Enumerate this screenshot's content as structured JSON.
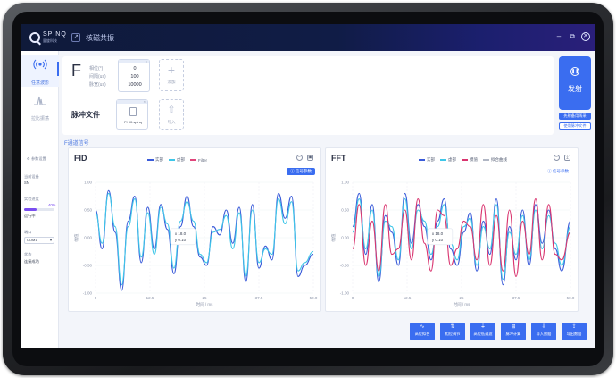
{
  "app": {
    "logo_text": "SPINQ",
    "logo_sub": "量旋科技",
    "title": "核磁共振",
    "win_buttons": [
      "–",
      "⧉",
      "✕"
    ]
  },
  "sidebar": {
    "items": [
      {
        "label": "任意波形",
        "icon": "antenna-icon",
        "active": true
      },
      {
        "label": "拉比振荡",
        "icon": "waveform-icon",
        "active": false
      }
    ],
    "settings_label": "参数设置",
    "current_device_label": "当前设备",
    "current_device": "SN",
    "experiment_progress_label": "实验进度",
    "progress_value": 0.4,
    "progress_text": "40%",
    "progress_status": "运行中",
    "port_label": "端口",
    "port_value": "COM1",
    "status_label": "状态",
    "status_value": "连接成功"
  },
  "params": {
    "symbol": "F",
    "labels": [
      "相位(°)",
      "间隔(us)",
      "脉宽(us)"
    ],
    "values": [
      "0",
      "100",
      "10000"
    ],
    "add_label": "添加",
    "pulse_file_label": "脉冲文件",
    "file_name": "FI 90.spinq",
    "import_label": "导入"
  },
  "fire": {
    "label": "发射",
    "btn1": "先射备用再采",
    "btn2": "使用脉冲文件"
  },
  "channel_label": "F通道信号",
  "fid": {
    "title": "FID",
    "legend": [
      "实部",
      "虚部",
      "Filter"
    ],
    "param_button": "信号参数",
    "ylabel": "幅值",
    "xlabel": "时间 / ms",
    "tooltip": [
      "x 18.0",
      "y 0.10"
    ]
  },
  "fft": {
    "title": "FFT",
    "legend": [
      "实部",
      "虚部",
      "模值",
      "拟合曲线"
    ],
    "param_button": "信号参数",
    "ylabel": "幅值",
    "xlabel": "时间 / ms",
    "tooltip": [
      "x 18.0",
      "y 0.10"
    ]
  },
  "colors": {
    "accent": "#3a6df0",
    "series_real": "#3a5bd9",
    "series_imag": "#3ec6e8",
    "series_filter": "#e0457b",
    "series_mag": "#d9346f",
    "series_fit": "#b0b6c4"
  },
  "chart_data": [
    {
      "type": "line",
      "title": "FID",
      "xlabel": "时间 / ms",
      "ylabel": "幅值",
      "xlim": [
        0,
        50
      ],
      "ylim": [
        -1,
        1
      ],
      "x_ticks": [
        "0",
        "12.5",
        "25",
        "37.5",
        "50.0"
      ],
      "y_ticks": [
        "1.00",
        "0.50",
        "0.00",
        "-0.50",
        "-1.00"
      ],
      "series": [
        {
          "name": "实部",
          "x": [
            0,
            1.5,
            3,
            4.5,
            6,
            7.5,
            9,
            10.5,
            12,
            13.5,
            15,
            16.5,
            18,
            19.5,
            21,
            22.5,
            24,
            25.5,
            27,
            28.5,
            30,
            31.5,
            33,
            34.5,
            36,
            37.5,
            39,
            40.5,
            42,
            43.5,
            45,
            46.5,
            48,
            50
          ],
          "y": [
            0.5,
            -0.2,
            0.85,
            0.1,
            -0.95,
            0.3,
            0.75,
            -0.45,
            0.55,
            -0.2,
            0.6,
            0.15,
            -0.65,
            0.2,
            0.75,
            0.2,
            -0.35,
            -0.5,
            0.2,
            0.05,
            0.5,
            -0.1,
            0.55,
            -0.8,
            0.6,
            -0.55,
            -0.15,
            -0.4,
            0.8,
            0.35,
            0.75,
            -0.7,
            -0.5,
            -0.3
          ]
        },
        {
          "name": "虚部",
          "x": [
            0,
            1.5,
            3,
            4.5,
            6,
            7.5,
            9,
            10.5,
            12,
            13.5,
            15,
            16.5,
            18,
            19.5,
            21,
            22.5,
            24,
            25.5,
            27,
            28.5,
            30,
            31.5,
            33,
            34.5,
            36,
            37.5,
            39,
            40.5,
            42,
            43.5,
            45,
            46.5,
            48,
            50
          ],
          "y": [
            0.45,
            -0.1,
            0.8,
            0.2,
            -0.85,
            0.2,
            0.7,
            -0.35,
            0.45,
            -0.3,
            0.55,
            0.25,
            -0.55,
            0.3,
            0.65,
            0.3,
            -0.3,
            -0.45,
            0.1,
            0.15,
            0.4,
            -0.2,
            0.45,
            -0.7,
            0.5,
            -0.45,
            -0.2,
            -0.3,
            0.7,
            0.25,
            0.65,
            -0.6,
            -0.45,
            -0.25
          ]
        }
      ]
    },
    {
      "type": "line",
      "title": "FFT",
      "xlabel": "时间 / ms",
      "ylabel": "幅值",
      "xlim": [
        0,
        50
      ],
      "ylim": [
        -1,
        1
      ],
      "x_ticks": [
        "0",
        "12.5",
        "25",
        "37.5",
        "50.0"
      ],
      "y_ticks": [
        "1.00",
        "0.50",
        "0.00",
        "-0.50",
        "-1.00"
      ],
      "series": [
        {
          "name": "实部",
          "x": [
            0,
            1.5,
            3,
            4.5,
            6,
            7.5,
            9,
            10.5,
            12,
            13.5,
            15,
            16.5,
            18,
            19.5,
            21,
            22.5,
            24,
            25.5,
            27,
            28.5,
            30,
            31.5,
            33,
            34.5,
            36,
            37.5,
            39,
            40.5,
            42,
            43.5,
            45,
            46.5,
            48,
            50
          ],
          "y": [
            0.2,
            0.8,
            -0.3,
            0.6,
            -0.8,
            0.4,
            0.1,
            -0.5,
            0.8,
            -0.1,
            0.6,
            0.2,
            -0.4,
            0.3,
            0.7,
            -0.2,
            -0.5,
            0.1,
            0.45,
            -0.6,
            0.3,
            -0.3,
            0.7,
            -0.85,
            0.2,
            -0.4,
            0.5,
            -0.5,
            0.6,
            -0.1,
            0.5,
            -0.2,
            -0.6,
            0.3
          ]
        },
        {
          "name": "虚部",
          "x": [
            0,
            1.5,
            3,
            4.5,
            6,
            7.5,
            9,
            10.5,
            12,
            13.5,
            15,
            16.5,
            18,
            19.5,
            21,
            22.5,
            24,
            25.5,
            27,
            28.5,
            30,
            31.5,
            33,
            34.5,
            36,
            37.5,
            39,
            40.5,
            42,
            43.5,
            45,
            46.5,
            48,
            50
          ],
          "y": [
            0.1,
            0.7,
            -0.2,
            0.5,
            -0.7,
            0.3,
            0.2,
            -0.4,
            0.7,
            -0.2,
            0.5,
            0.3,
            -0.3,
            0.2,
            0.6,
            -0.1,
            -0.4,
            0.2,
            0.35,
            -0.5,
            0.2,
            -0.2,
            0.6,
            -0.75,
            0.1,
            -0.3,
            0.4,
            -0.4,
            0.5,
            -0.2,
            0.4,
            -0.1,
            -0.5,
            0.2
          ]
        },
        {
          "name": "模值",
          "x": [
            0,
            1.5,
            3,
            4.5,
            6,
            7.5,
            9,
            10.5,
            12,
            13.5,
            15,
            16.5,
            18,
            19.5,
            21,
            22.5,
            24,
            25.5,
            27,
            28.5,
            30,
            31.5,
            33,
            34.5,
            36,
            37.5,
            39,
            40.5,
            42,
            43.5,
            45,
            46.5,
            48,
            50
          ],
          "y": [
            -0.2,
            0.6,
            -0.5,
            0.3,
            -0.6,
            0.6,
            -0.3,
            -0.2,
            0.5,
            -0.4,
            0.7,
            -0.1,
            -0.6,
            0.5,
            0.4,
            -0.5,
            -0.2,
            0.3,
            0.2,
            -0.4,
            0.6,
            -0.5,
            0.4,
            -0.6,
            0.5,
            -0.7,
            0.3,
            -0.3,
            0.7,
            -0.4,
            0.6,
            -0.3,
            -0.4,
            0.1
          ]
        }
      ]
    }
  ],
  "actions": [
    {
      "label": "高位拟合",
      "icon": "curve-icon"
    },
    {
      "label": "相位调节",
      "icon": "phase-icon"
    },
    {
      "label": "高位低通滤",
      "icon": "filter-icon"
    },
    {
      "label": "脉冲计算",
      "icon": "pulse-icon"
    },
    {
      "label": "导入数据",
      "icon": "import-icon"
    },
    {
      "label": "导出数据",
      "icon": "export-icon"
    }
  ]
}
